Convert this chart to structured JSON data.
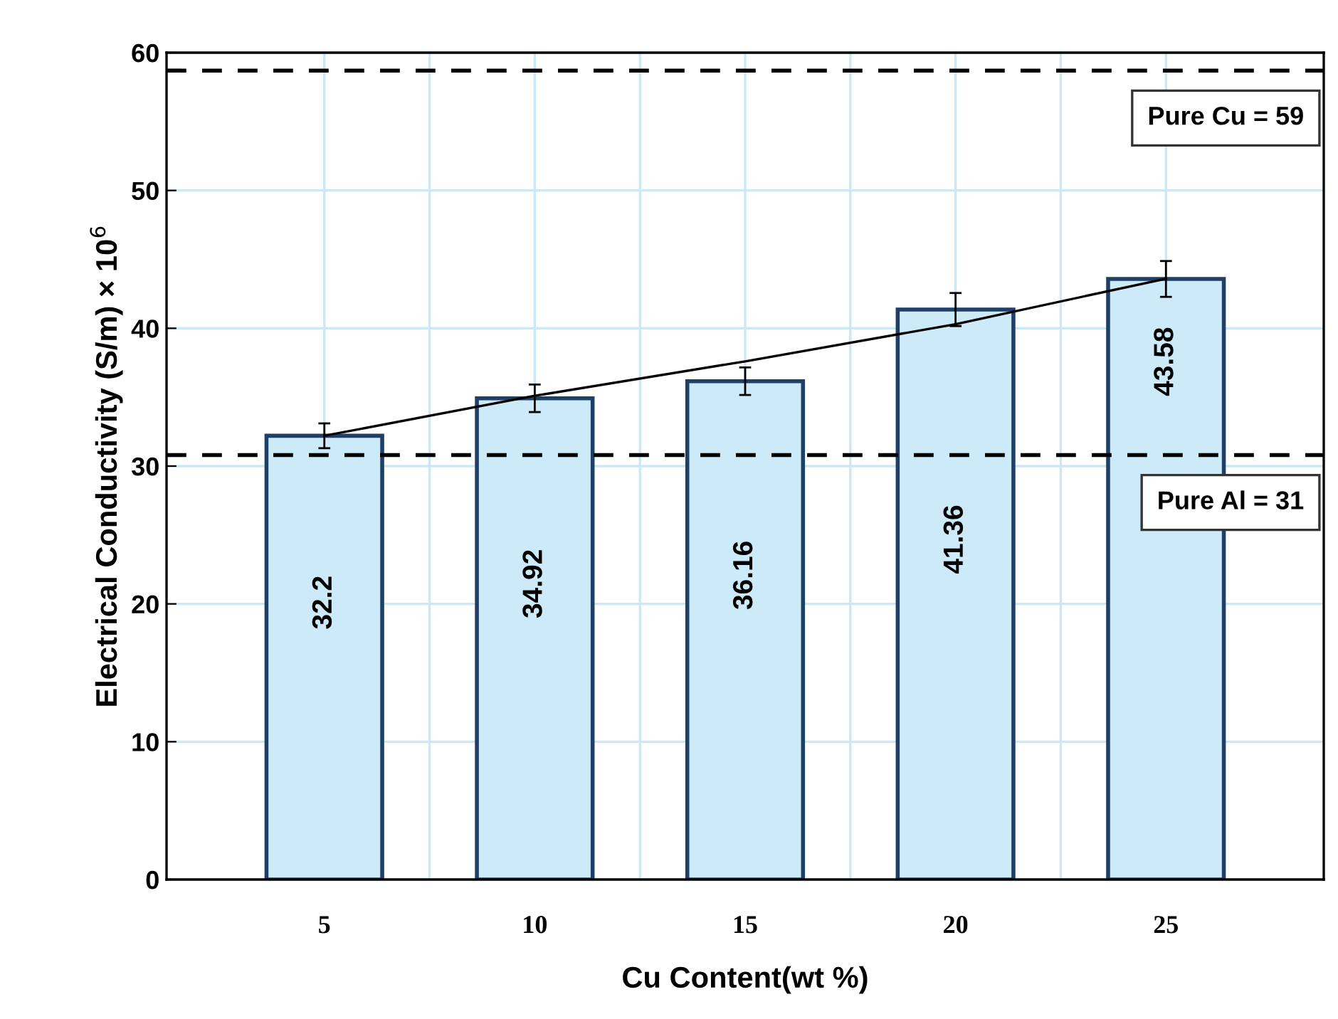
{
  "chart_data": {
    "type": "bar",
    "xlabel": "Cu Content(wt %)",
    "ylabel": "Electrical Conductivity (S/m) × 10$^{6}$",
    "categories": [
      "5",
      "10",
      "15",
      "20",
      "25"
    ],
    "series": [
      {
        "color": "#cdeaf8",
        "values": [
          32.2,
          34.92,
          36.16,
          41.36,
          43.58
        ],
        "errors": [
          0.9,
          1.0,
          1.0,
          1.2,
          1.3
        ],
        "value_labels": [
          "32.2",
          "34.92",
          "36.16",
          "41.36",
          "43.58"
        ]
      },
      {
        "type": "line",
        "color": "#000000",
        "x": [
          "5",
          "10",
          "15",
          "20",
          "25"
        ],
        "values": [
          32.2,
          35.1,
          37.6,
          40.3,
          43.6
        ],
        "marker": "none"
      }
    ],
    "ylim": [
      0,
      60
    ],
    "yticks": [
      0,
      10,
      20,
      30,
      40,
      50,
      60
    ],
    "ref_lines": [
      {
        "axis": "y",
        "value": 58.7,
        "label": "Pure Cu = 59",
        "color": "#000000",
        "line_style": "dashed"
      },
      {
        "axis": "y",
        "value": 30.8,
        "label": "Pure Al = 31",
        "color": "#000000",
        "line_style": "dashed"
      }
    ],
    "grid": true,
    "legend": false
  }
}
